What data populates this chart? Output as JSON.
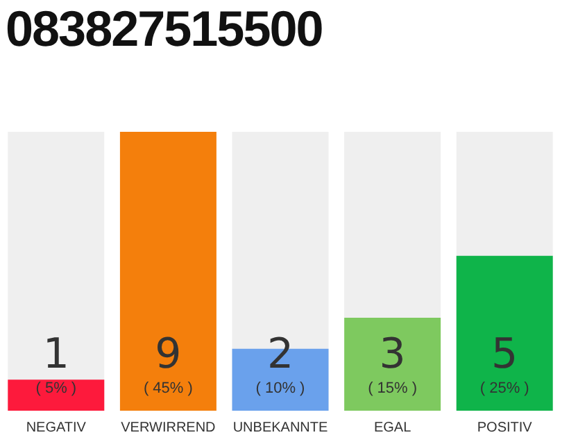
{
  "chart_data": {
    "type": "bar",
    "title": "083827515500",
    "categories": [
      "NEGATIV",
      "VERWIRREND",
      "UNBEKANNTE",
      "EGAL",
      "POSITIV"
    ],
    "values": [
      1,
      9,
      2,
      3,
      5
    ],
    "colors": [
      "#fd1a3c",
      "#f47f0c",
      "#6aa1ec",
      "#7ec95f",
      "#0fb44a"
    ],
    "data_labels": true,
    "annotations": [
      "( 5% )",
      "( 45% )",
      "( 10% )",
      "( 15% )",
      "( 25% )"
    ],
    "grid": false,
    "legend": false
  }
}
